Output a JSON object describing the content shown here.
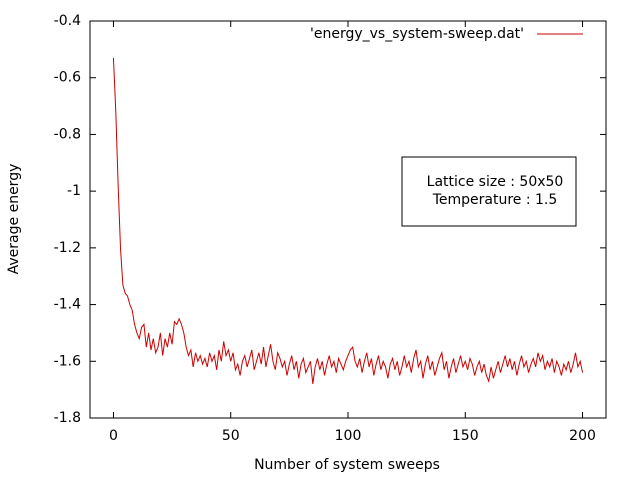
{
  "chart_data": {
    "type": "line",
    "xlabel": "Number of system sweeps",
    "ylabel": "Average energy",
    "annotations": [
      "Lattice size : 50x50",
      "Temperature : 1.5"
    ],
    "legend": "top right",
    "xlim": [
      -10,
      210
    ],
    "xticks": [
      0,
      50,
      100,
      150,
      200
    ],
    "ylim": [
      -1.8,
      -0.4
    ],
    "yticks": [
      -1.8,
      -1.6,
      -1.4,
      -1.2,
      -1,
      -0.8,
      -0.6,
      -0.4
    ],
    "x": [
      0,
      1,
      2,
      3,
      4,
      5,
      6,
      7,
      8,
      9,
      10,
      11,
      12,
      13,
      14,
      15,
      16,
      17,
      18,
      19,
      20,
      21,
      22,
      23,
      24,
      25,
      26,
      27,
      28,
      29,
      30,
      31,
      32,
      33,
      34,
      35,
      36,
      37,
      38,
      39,
      40,
      41,
      42,
      43,
      44,
      45,
      46,
      47,
      48,
      49,
      50,
      51,
      52,
      53,
      54,
      55,
      56,
      57,
      58,
      59,
      60,
      61,
      62,
      63,
      64,
      65,
      66,
      67,
      68,
      69,
      70,
      71,
      72,
      73,
      74,
      75,
      76,
      77,
      78,
      79,
      80,
      81,
      82,
      83,
      84,
      85,
      86,
      87,
      88,
      89,
      90,
      91,
      92,
      93,
      94,
      95,
      96,
      97,
      98,
      99,
      100,
      101,
      102,
      103,
      104,
      105,
      106,
      107,
      108,
      109,
      110,
      111,
      112,
      113,
      114,
      115,
      116,
      117,
      118,
      119,
      120,
      121,
      122,
      123,
      124,
      125,
      126,
      127,
      128,
      129,
      130,
      131,
      132,
      133,
      134,
      135,
      136,
      137,
      138,
      139,
      140,
      141,
      142,
      143,
      144,
      145,
      146,
      147,
      148,
      149,
      150,
      151,
      152,
      153,
      154,
      155,
      156,
      157,
      158,
      159,
      160,
      161,
      162,
      163,
      164,
      165,
      166,
      167,
      168,
      169,
      170,
      171,
      172,
      173,
      174,
      175,
      176,
      177,
      178,
      179,
      180,
      181,
      182,
      183,
      184,
      185,
      186,
      187,
      188,
      189,
      190,
      191,
      192,
      193,
      194,
      195,
      196,
      197,
      198,
      199,
      200
    ],
    "series": [
      {
        "name": "'energy_vs_system-sweep.dat'",
        "color": "#cc0000",
        "values": [
          -0.53,
          -0.72,
          -0.98,
          -1.2,
          -1.33,
          -1.36,
          -1.37,
          -1.4,
          -1.42,
          -1.47,
          -1.5,
          -1.52,
          -1.48,
          -1.47,
          -1.55,
          -1.5,
          -1.56,
          -1.52,
          -1.57,
          -1.55,
          -1.5,
          -1.58,
          -1.52,
          -1.55,
          -1.5,
          -1.54,
          -1.46,
          -1.47,
          -1.45,
          -1.47,
          -1.5,
          -1.55,
          -1.58,
          -1.56,
          -1.62,
          -1.57,
          -1.6,
          -1.58,
          -1.61,
          -1.59,
          -1.62,
          -1.57,
          -1.6,
          -1.58,
          -1.63,
          -1.56,
          -1.6,
          -1.53,
          -1.58,
          -1.56,
          -1.6,
          -1.57,
          -1.63,
          -1.61,
          -1.65,
          -1.6,
          -1.58,
          -1.62,
          -1.59,
          -1.56,
          -1.63,
          -1.6,
          -1.57,
          -1.61,
          -1.55,
          -1.62,
          -1.58,
          -1.54,
          -1.6,
          -1.63,
          -1.57,
          -1.59,
          -1.62,
          -1.6,
          -1.65,
          -1.61,
          -1.58,
          -1.63,
          -1.6,
          -1.66,
          -1.61,
          -1.59,
          -1.64,
          -1.62,
          -1.6,
          -1.68,
          -1.62,
          -1.59,
          -1.63,
          -1.6,
          -1.65,
          -1.61,
          -1.58,
          -1.62,
          -1.6,
          -1.64,
          -1.59,
          -1.61,
          -1.63,
          -1.6,
          -1.58,
          -1.56,
          -1.55,
          -1.6,
          -1.62,
          -1.59,
          -1.64,
          -1.6,
          -1.57,
          -1.62,
          -1.59,
          -1.65,
          -1.61,
          -1.58,
          -1.63,
          -1.6,
          -1.62,
          -1.66,
          -1.61,
          -1.59,
          -1.63,
          -1.6,
          -1.65,
          -1.62,
          -1.58,
          -1.62,
          -1.6,
          -1.64,
          -1.59,
          -1.56,
          -1.62,
          -1.6,
          -1.66,
          -1.61,
          -1.58,
          -1.63,
          -1.6,
          -1.65,
          -1.62,
          -1.59,
          -1.57,
          -1.63,
          -1.6,
          -1.66,
          -1.62,
          -1.59,
          -1.64,
          -1.61,
          -1.58,
          -1.62,
          -1.6,
          -1.63,
          -1.59,
          -1.61,
          -1.65,
          -1.62,
          -1.6,
          -1.64,
          -1.61,
          -1.65,
          -1.67,
          -1.62,
          -1.66,
          -1.63,
          -1.6,
          -1.64,
          -1.61,
          -1.58,
          -1.62,
          -1.59,
          -1.63,
          -1.6,
          -1.65,
          -1.61,
          -1.58,
          -1.62,
          -1.6,
          -1.64,
          -1.61,
          -1.59,
          -1.62,
          -1.57,
          -1.6,
          -1.58,
          -1.63,
          -1.6,
          -1.62,
          -1.59,
          -1.64,
          -1.6,
          -1.62,
          -1.65,
          -1.61,
          -1.63,
          -1.6,
          -1.64,
          -1.61,
          -1.57,
          -1.62,
          -1.6,
          -1.64
        ]
      }
    ]
  }
}
